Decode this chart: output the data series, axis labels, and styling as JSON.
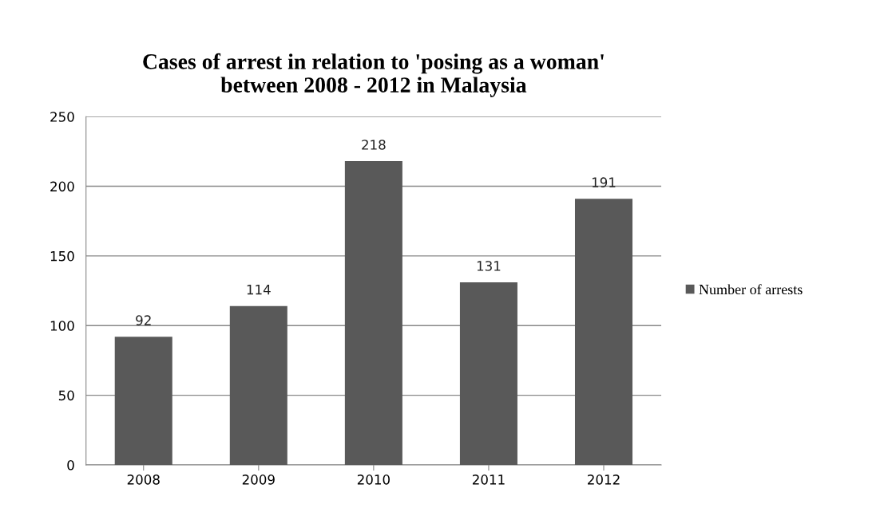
{
  "chart_data": {
    "type": "bar",
    "title": "Cases of arrest in relation to 'posing as a woman'\nbetween 2008 - 2012 in Malaysia",
    "categories": [
      "2008",
      "2009",
      "2010",
      "2011",
      "2012"
    ],
    "series": [
      {
        "name": "Number of arrests",
        "color": "#595959",
        "values": [
          92,
          114,
          218,
          131,
          191
        ]
      }
    ],
    "ylim": [
      0,
      250
    ],
    "yticks": [
      0,
      50,
      100,
      150,
      200,
      250
    ],
    "grid": "y",
    "legend": "right",
    "data_labels": true
  }
}
